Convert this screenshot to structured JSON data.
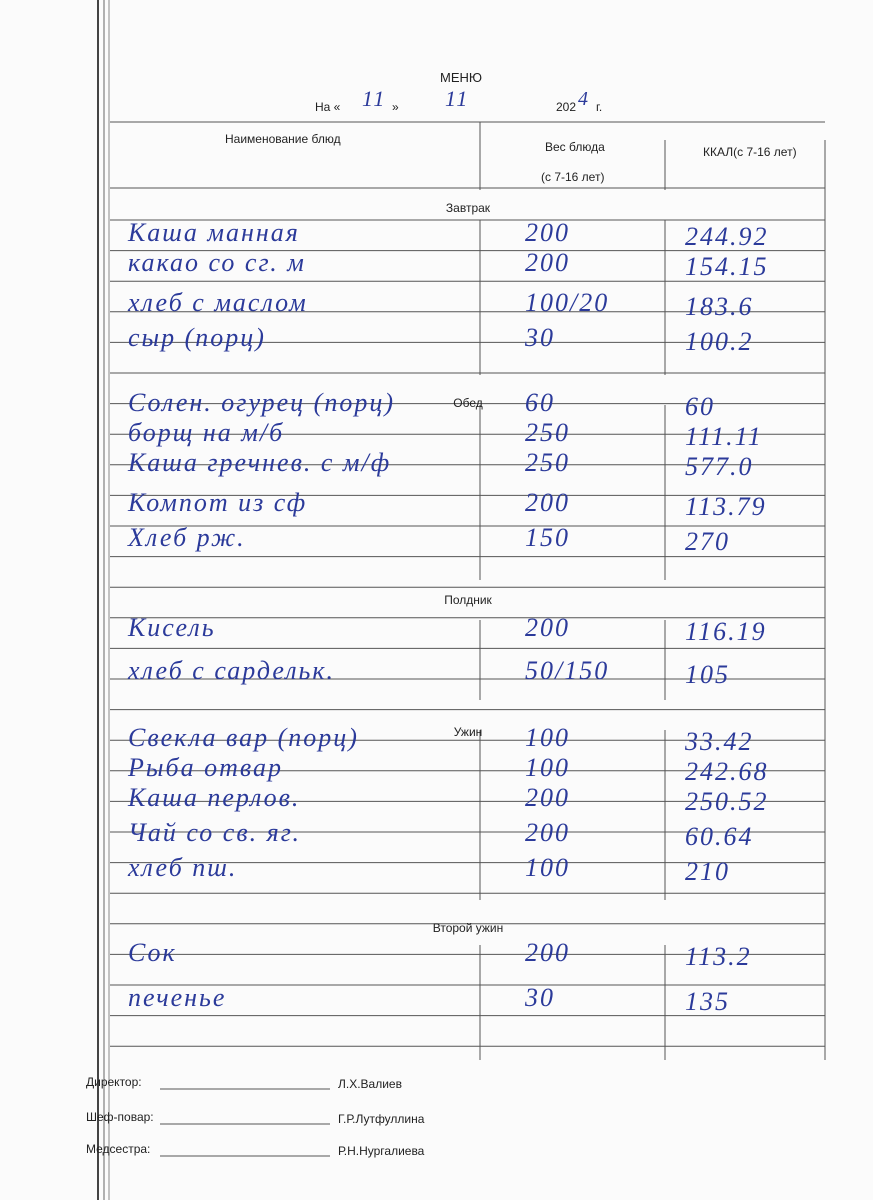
{
  "title": "МЕНЮ",
  "date": {
    "prefix": "На «",
    "day": "11",
    "separator": "»",
    "month": "11",
    "year_prefix": "202",
    "year_suffix": "4",
    "suffix": "г."
  },
  "table": {
    "headers": {
      "name": "Наименование блюд",
      "weight": [
        "Вес блюда",
        "(с 7-16 лет)"
      ],
      "kcal": "ККАЛ(с 7-16 лет)"
    },
    "sections": [
      {
        "name": "Завтрак",
        "rows": [
          [
            "Каша манная",
            "200",
            "244.92"
          ],
          [
            "какао со сг. м",
            "200",
            "154.15"
          ],
          [
            "хлеб с маслом",
            "100/20",
            "183.6"
          ],
          [
            "сыр (порц)",
            "30",
            "100.2"
          ]
        ]
      },
      {
        "name": "Обед",
        "rows": [
          [
            "Солен. огурец (порц)",
            "60",
            "60"
          ],
          [
            "борщ на м/б",
            "250",
            "111.11"
          ],
          [
            "Каша гречнев. с м/ф",
            "250",
            "577.0"
          ],
          [
            "Компот из сф",
            "200",
            "113.79"
          ],
          [
            "Хлеб рж.",
            "150",
            "270"
          ]
        ]
      },
      {
        "name": "Полдник",
        "rows": [
          [
            "Кисель",
            "200",
            "116.19"
          ],
          [
            "хлеб с сардельк.",
            "50/150",
            "105"
          ]
        ]
      },
      {
        "name": "Ужин",
        "rows": [
          [
            "Свекла вар (порц)",
            "100",
            "33.42"
          ],
          [
            "Рыба отвар",
            "100",
            "242.68"
          ],
          [
            "Каша перлов.",
            "200",
            "250.52"
          ],
          [
            "Чай со св. яг.",
            "200",
            "60.64"
          ],
          [
            "хлеб пш.",
            "100",
            "210"
          ]
        ]
      },
      {
        "name": "Второй ужин",
        "rows": [
          [
            "Сок",
            "200",
            "113.2"
          ],
          [
            "печенье",
            "30",
            "135"
          ]
        ]
      }
    ]
  },
  "signatures": [
    {
      "role": "Директор:",
      "name": "Л.Х.Валиев"
    },
    {
      "role": "Шеф-повар:",
      "name": "Г.Р.Лутфуллина"
    },
    {
      "role": "Медсестра:",
      "name": "Р.Н.Нургалиева"
    }
  ]
}
